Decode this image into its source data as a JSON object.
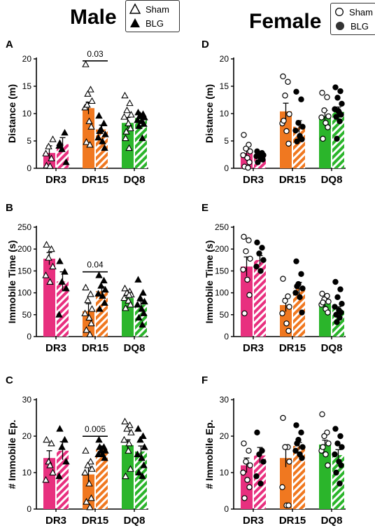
{
  "columns": {
    "male": "Male",
    "female": "Female"
  },
  "legends": {
    "male": [
      {
        "label": "Sham",
        "symbol": "triangle-open"
      },
      {
        "label": "BLG",
        "symbol": "triangle-filled"
      }
    ],
    "female": [
      {
        "label": "Sham",
        "symbol": "circle-open"
      },
      {
        "label": "BLG",
        "symbol": "circle-filled"
      }
    ]
  },
  "colors": {
    "DR3": "#e8307f",
    "DR15": "#f07820",
    "DQ8": "#2bb52b"
  },
  "chart_data": [
    {
      "panel": "A",
      "sex": "Male",
      "type": "bar",
      "ylabel": "Distance (m)",
      "ylim": [
        0,
        20
      ],
      "yticks": [
        0,
        5,
        10,
        15,
        20
      ],
      "categories": [
        "DR3",
        "DR15",
        "DQ8"
      ],
      "series": [
        {
          "name": "Sham",
          "means": [
            2.8,
            11.0,
            8.3
          ],
          "sem": [
            1.3,
            1.1,
            1.0
          ],
          "points": [
            [
              0.5,
              1.8,
              4.0,
              5.3,
              2.7,
              0.4
            ],
            [
              19.0,
              14.4,
              13.6,
              12.3,
              11.1,
              8.6,
              7.6,
              4.8,
              4.3,
              11.6
            ],
            [
              13.3,
              11.9,
              10.6,
              9.8,
              9.4,
              8.2,
              7.3,
              5.5,
              3.7,
              6.7
            ]
          ]
        },
        {
          "name": "BLG",
          "means": [
            4.4,
            7.1,
            9.2
          ],
          "sem": [
            1.2,
            0.8,
            0.5
          ],
          "points": [
            [
              4.6,
              6.5,
              3.5,
              1.1,
              4.1
            ],
            [
              9.6,
              8.2,
              7.1,
              6.2,
              5.6,
              4.9,
              3.7,
              6.8
            ],
            [
              10.2,
              9.9,
              9.7,
              9.3,
              8.8,
              8.6,
              8.1,
              7.7,
              5.5,
              9.5
            ]
          ]
        }
      ],
      "annotation": {
        "text": "0.03",
        "category": "DR15"
      }
    },
    {
      "panel": "B",
      "sex": "Male",
      "type": "bar",
      "ylabel": "Immobile Time (s)",
      "ylim": [
        0,
        250
      ],
      "yticks": [
        0,
        50,
        100,
        150,
        200,
        250
      ],
      "categories": [
        "DR3",
        "DR15",
        "DQ8"
      ],
      "series": [
        {
          "name": "Sham",
          "means": [
            178,
            58,
            88
          ],
          "sem": [
            14,
            17,
            6
          ],
          "points": [
            [
              210,
              200,
              180,
              160,
              140,
              125
            ],
            [
              112,
              97,
              83,
              63,
              53,
              43,
              30,
              15,
              5
            ],
            [
              110,
              103,
              100,
              96,
              88,
              82,
              73,
              65,
              95
            ]
          ]
        },
        {
          "name": "BLG",
          "means": [
            126,
            104,
            73
          ],
          "sem": [
            22,
            10,
            8
          ],
          "points": [
            [
              172,
              148,
              125,
              110,
              50
            ],
            [
              140,
              128,
              116,
              107,
              98,
              93,
              77,
              63
            ],
            [
              130,
              100,
              88,
              80,
              73,
              63,
              53,
              43,
              27
            ]
          ]
        }
      ],
      "annotation": {
        "text": "0.04",
        "category": "DR15"
      }
    },
    {
      "panel": "C",
      "sex": "Male",
      "type": "bar",
      "ylabel": "# Immobile Ep.",
      "ylim": [
        0,
        30
      ],
      "yticks": [
        0,
        10,
        20,
        30
      ],
      "categories": [
        "DR3",
        "DR15",
        "DQ8"
      ],
      "series": [
        {
          "name": "Sham",
          "means": [
            14,
            9.5,
            17.5
          ],
          "sem": [
            2,
            2,
            1.5
          ],
          "points": [
            [
              19,
              18,
              13,
              10,
              8,
              12
            ],
            [
              16,
              13,
              12,
              11,
              10,
              7,
              3,
              2,
              0.5
            ],
            [
              24,
              23,
              22,
              21,
              19,
              16,
              11,
              9,
              18
            ]
          ]
        },
        {
          "name": "BLG",
          "means": [
            16,
            16.3,
            15.8
          ],
          "sem": [
            2.5,
            1,
            1.5
          ],
          "points": [
            [
              22,
              19,
              17,
              13,
              9
            ],
            [
              19,
              17,
              16,
              16,
              15,
              15,
              14,
              17
            ],
            [
              22,
              20,
              19,
              17,
              15,
              14,
              12,
              10,
              9
            ]
          ]
        }
      ],
      "annotation": {
        "text": "0.005",
        "category": "DR15"
      }
    },
    {
      "panel": "D",
      "sex": "Female",
      "type": "bar",
      "ylabel": "Distance (m)",
      "ylim": [
        0,
        20
      ],
      "yticks": [
        0,
        5,
        10,
        15,
        20
      ],
      "categories": [
        "DR3",
        "DR15",
        "DQ8"
      ],
      "series": [
        {
          "name": "Sham",
          "means": [
            2.8,
            10.4,
            9.5
          ],
          "sem": [
            0.8,
            1.5,
            1.1
          ],
          "points": [
            [
              6.1,
              4.3,
              3.6,
              3.1,
              2.4,
              1.9,
              1.1,
              0.3,
              0.1
            ],
            [
              16.8,
              15.8,
              13.3,
              9.9,
              8.2,
              6.8,
              4.5,
              8.7
            ],
            [
              13.8,
              13.0,
              10.6,
              9.5,
              9.3,
              8.3,
              7.5,
              5.4
            ]
          ]
        },
        {
          "name": "BLG",
          "means": [
            2.4,
            7.6,
            10.3
          ],
          "sem": [
            0.3,
            1.1,
            0.9
          ],
          "points": [
            [
              3.1,
              2.8,
              2.6,
              2.4,
              2.2,
              1.9,
              1.6,
              1.1
            ],
            [
              14.0,
              12.6,
              8.3,
              7.6,
              6.9,
              5.9,
              5.3,
              4.9,
              5.5
            ],
            [
              14.8,
              14.1,
              12.9,
              11.8,
              10.8,
              10.3,
              9.8,
              9.4,
              8.6,
              5.4,
              10.5
            ]
          ]
        }
      ]
    },
    {
      "panel": "E",
      "sex": "Female",
      "type": "bar",
      "ylabel": "Immobile Time (s)",
      "ylim": [
        0,
        250
      ],
      "yticks": [
        0,
        50,
        100,
        150,
        200,
        250
      ],
      "categories": [
        "DR3",
        "DR15",
        "DQ8"
      ],
      "series": [
        {
          "name": "Sham",
          "means": [
            160,
            72,
            75
          ],
          "sem": [
            22,
            15,
            6
          ],
          "points": [
            [
              228,
              220,
              195,
              178,
              153,
              130,
              95,
              53
            ],
            [
              132,
              92,
              82,
              68,
              53,
              30,
              13
            ],
            [
              98,
              93,
              85,
              80,
              73,
              63,
              55,
              78
            ]
          ]
        },
        {
          "name": "BLG",
          "means": [
            175,
            110,
            62
          ],
          "sem": [
            10,
            14,
            6
          ],
          "points": [
            [
              215,
              203,
              190,
              175,
              160,
              150
            ],
            [
              172,
              143,
              120,
              110,
              100,
              90,
              55,
              115
            ],
            [
              125,
              108,
              90,
              75,
              68,
              60,
              55,
              50,
              43,
              33
            ]
          ]
        }
      ]
    },
    {
      "panel": "F",
      "sex": "Female",
      "type": "bar",
      "ylabel": "# Immobile Ep.",
      "ylim": [
        0,
        30
      ],
      "yticks": [
        0,
        10,
        20,
        30
      ],
      "categories": [
        "DR3",
        "DR15",
        "DQ8"
      ],
      "series": [
        {
          "name": "Sham",
          "means": [
            12,
            14,
            17.7
          ],
          "sem": [
            2,
            2.5,
            1.2
          ],
          "points": [
            [
              18,
              16,
              13,
              12,
              10,
              8,
              6,
              3
            ],
            [
              25,
              17,
              17,
              13,
              6,
              1,
              1
            ],
            [
              26,
              21,
              20,
              18,
              16,
              15,
              12,
              17
            ]
          ]
        },
        {
          "name": "BLG",
          "means": [
            14.7,
            17.3,
            14.8
          ],
          "sem": [
            2.2,
            1,
            1.5
          ],
          "points": [
            [
              21,
              16,
              15,
              13,
              9,
              7
            ],
            [
              23,
              21,
              19,
              17,
              16,
              15,
              14,
              18
            ],
            [
              22,
              20,
              18,
              17,
              15,
              13,
              12,
              10,
              7
            ]
          ]
        }
      ]
    }
  ]
}
